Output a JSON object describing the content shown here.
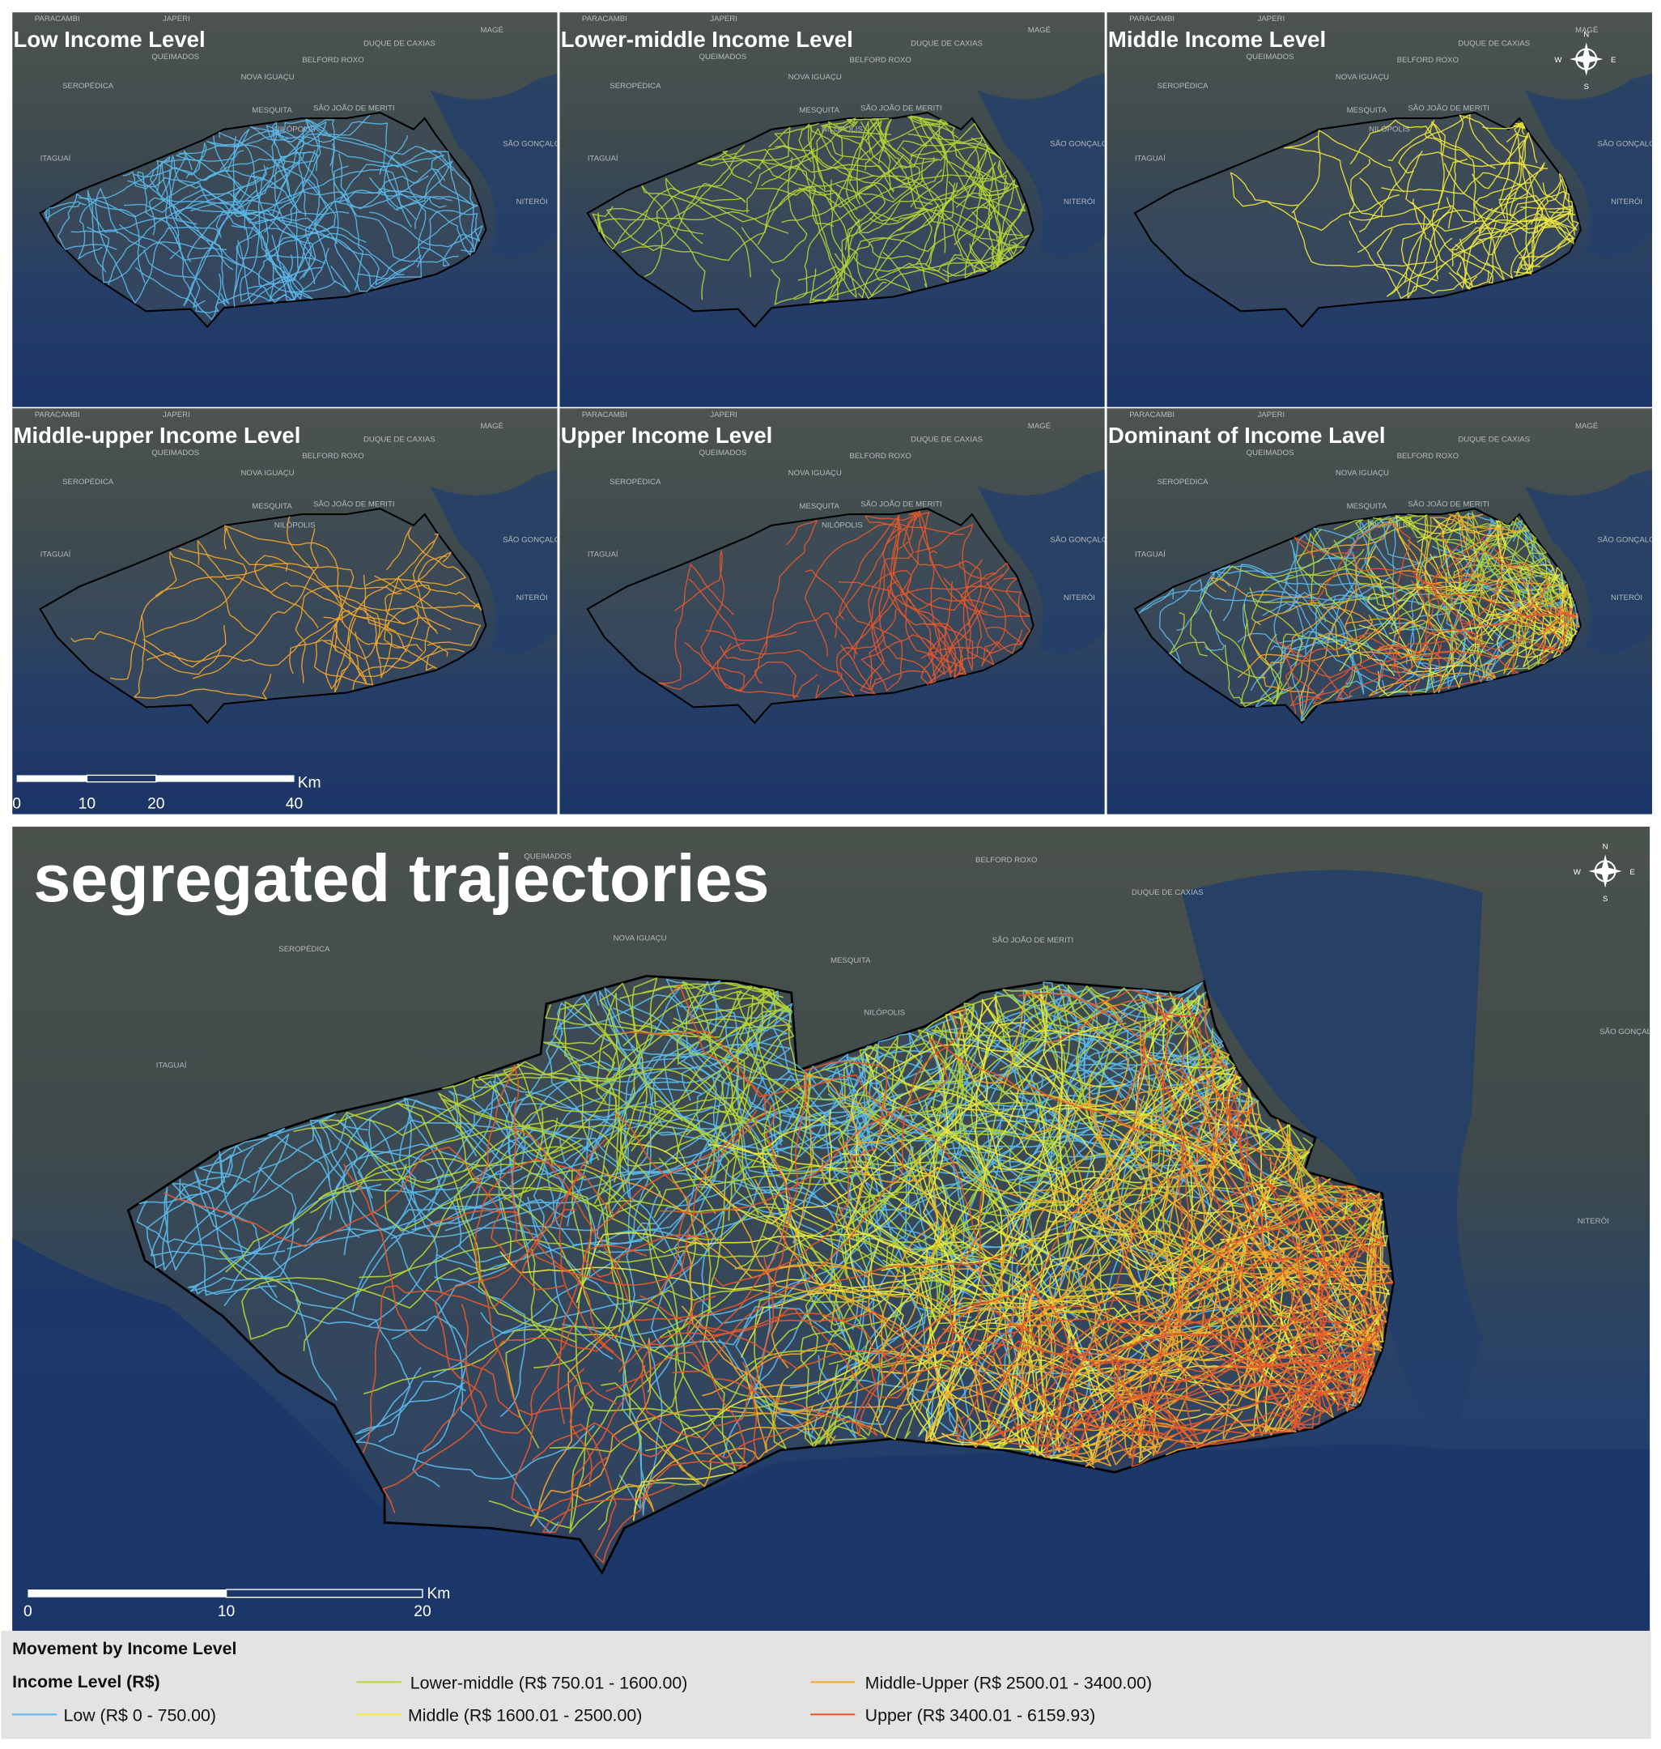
{
  "panels": [
    {
      "title": "Low Income Level"
    },
    {
      "title": "Lower-middle Income Level"
    },
    {
      "title": "Middle Income Level"
    },
    {
      "title": "Middle-upper Income Level"
    },
    {
      "title": "Upper Income Level"
    },
    {
      "title": "Dominant of Income Lavel"
    }
  ],
  "place_labels": [
    "PARACAMBI",
    "JAPERI",
    "MAGÉ",
    "QUEIMADOS",
    "DUQUE DE CAXIAS",
    "BELFORD ROXO",
    "NOVA IGUAÇU",
    "SEROPÉDICA",
    "SÃO JOÃO DE MERITI",
    "MESQUITA",
    "NILÓPOLIS",
    "SÃO GONÇALO",
    "ITAGUAÍ",
    "NITERÓI"
  ],
  "compass": {
    "north": "N",
    "south": "S",
    "west": "W",
    "east": "E"
  },
  "small_scale_bar": {
    "ticks": [
      0,
      10,
      20,
      40
    ],
    "unit": "Km"
  },
  "main_map": {
    "title": "segregated trajectories"
  },
  "large_scale_bar": {
    "ticks": [
      0,
      10,
      20
    ],
    "unit": "Km"
  },
  "legend": {
    "title": "Movement by Income Level",
    "header": "Income Level (R$)",
    "items": [
      {
        "label": "Low (R$ 0 - 750.00)",
        "color": "#5bb9ea"
      },
      {
        "label": "Lower-middle (R$ 750.01 - 1600.00)",
        "color": "#b6d434"
      },
      {
        "label": "Middle (R$ 1600.01 - 2500.00)",
        "color": "#f2ea3c"
      },
      {
        "label": "Middle-Upper (R$ 2500.01 - 3400.00)",
        "color": "#f5a72a"
      },
      {
        "label": "Upper (R$ 3400.01 - 6159.93)",
        "color": "#e8582b"
      }
    ]
  }
}
